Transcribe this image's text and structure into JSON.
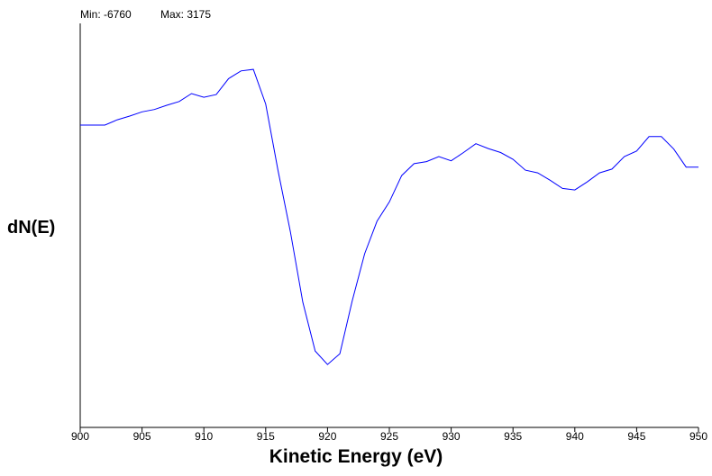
{
  "header": {
    "min_label": "Min: -6760",
    "max_label": "Max: 3175"
  },
  "chart_data": {
    "type": "line",
    "title": "",
    "xlabel": "Kinetic Energy (eV)",
    "ylabel": "dN(E)",
    "xlim": [
      900,
      950
    ],
    "ylim": [
      -6760,
      3175
    ],
    "x_ticks": [
      900,
      905,
      910,
      915,
      920,
      925,
      930,
      935,
      940,
      945,
      950
    ],
    "grid": false,
    "line_color": "#0000ff",
    "series": [
      {
        "x": [
          900,
          901,
          902,
          903,
          904,
          905,
          906,
          907,
          908,
          909,
          910,
          911,
          912,
          913,
          914,
          915,
          916,
          917,
          918,
          919,
          920,
          921,
          922,
          923,
          924,
          925,
          926,
          927,
          928,
          929,
          930,
          931,
          932,
          933,
          934,
          935,
          936,
          937,
          938,
          939,
          940,
          941,
          942,
          943,
          944,
          945,
          946,
          947,
          948,
          949,
          950
        ],
        "y": [
          1130,
          1130,
          1130,
          1285,
          1395,
          1520,
          1590,
          1715,
          1825,
          2060,
          1950,
          2030,
          2500,
          2730,
          2775,
          1750,
          -215,
          -2020,
          -4100,
          -5540,
          -5940,
          -5620,
          -4060,
          -2670,
          -1710,
          -1140,
          -360,
          -10,
          50,
          200,
          75,
          320,
          580,
          435,
          320,
          120,
          -200,
          -280,
          -500,
          -740,
          -785,
          -550,
          -280,
          -170,
          200,
          365,
          790,
          790,
          420,
          -110,
          -110
        ]
      }
    ]
  }
}
